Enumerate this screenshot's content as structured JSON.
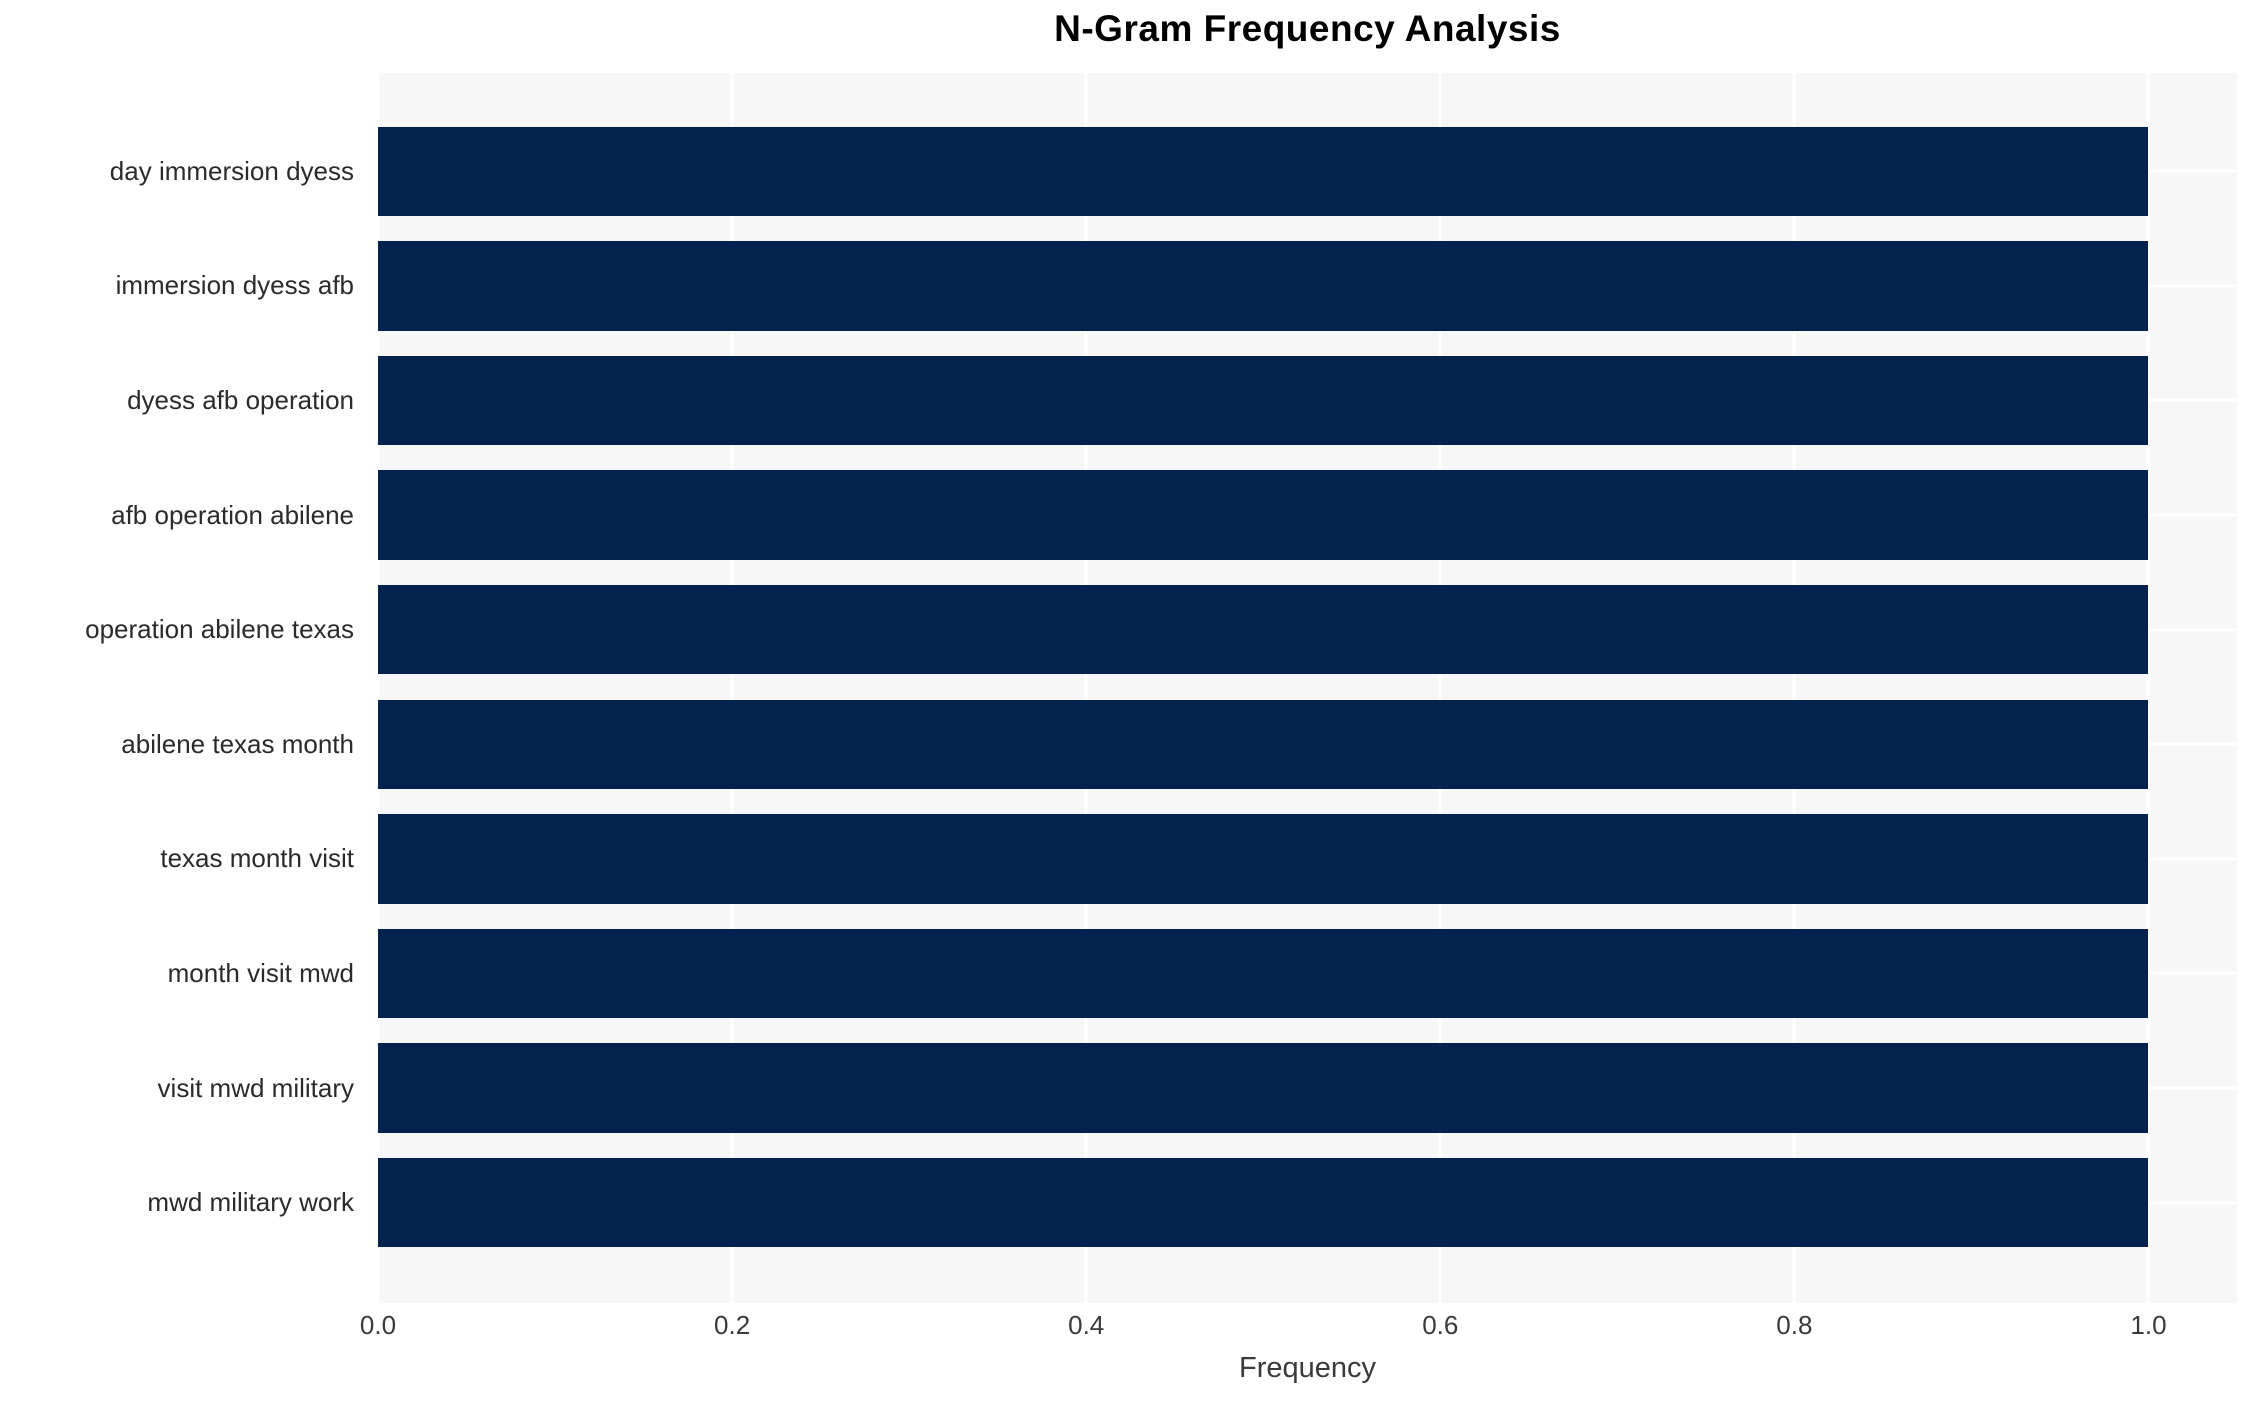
{
  "title": "N-Gram Frequency Analysis",
  "chart_data": {
    "type": "bar",
    "orientation": "horizontal",
    "title": "N-Gram Frequency Analysis",
    "categories": [
      "day immersion dyess",
      "immersion dyess afb",
      "dyess afb operation",
      "afb operation abilene",
      "operation abilene texas",
      "abilene texas month",
      "texas month visit",
      "month visit mwd",
      "visit mwd military",
      "mwd military work"
    ],
    "values": [
      1.0,
      1.0,
      1.0,
      1.0,
      1.0,
      1.0,
      1.0,
      1.0,
      1.0,
      1.0
    ],
    "xlabel": "Frequency",
    "ylabel": "",
    "xlim": [
      0,
      1.05
    ],
    "xticks": [
      "0.0",
      "0.2",
      "0.4",
      "0.6",
      "0.8",
      "1.0"
    ],
    "xtick_values": [
      0.0,
      0.2,
      0.4,
      0.6,
      0.8,
      1.0
    ],
    "grid": true,
    "legend_position": "none",
    "colors": {
      "bar": "#03234e",
      "plot_background": "#f7f7f7",
      "gridline": "#ffffff",
      "label_text": "#2b2b2b",
      "tick_text": "#3a3a3a",
      "title_text": "#000000"
    }
  }
}
